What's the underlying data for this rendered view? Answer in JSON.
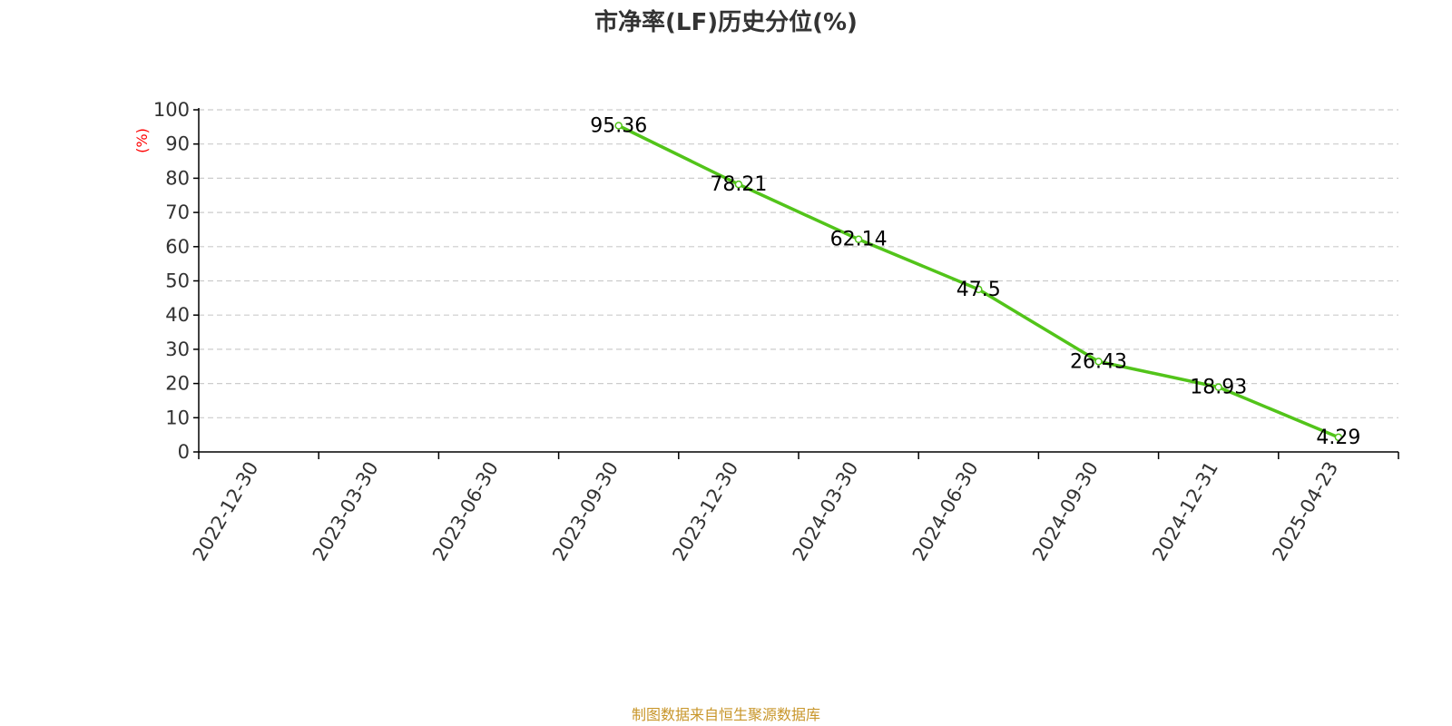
{
  "title": "市净率(LF)历史分位(%)",
  "footer": "制图数据来自恒生聚源数据库",
  "colors": {
    "line": "#52c41a",
    "axis": "#000000",
    "grid": "#cccccc",
    "ylabel": "#ff0000",
    "footer": "#c8962a",
    "title": "#333333"
  },
  "chart_data": {
    "type": "line",
    "title": "市净率(LF)历史分位(%)",
    "xlabel": "",
    "ylabel": "(%)",
    "ylim": [
      0,
      100
    ],
    "yticks": [
      0,
      10,
      20,
      30,
      40,
      50,
      60,
      70,
      80,
      90,
      100
    ],
    "categories": [
      "2022-12-30",
      "2023-03-30",
      "2023-06-30",
      "2023-09-30",
      "2023-12-30",
      "2024-03-30",
      "2024-06-30",
      "2024-09-30",
      "2024-12-31",
      "2025-04-23"
    ],
    "grid": true,
    "legend": "none",
    "series": [
      {
        "values": [
          null,
          null,
          null,
          95.36,
          78.21,
          62.14,
          47.5,
          26.43,
          18.93,
          4.29
        ],
        "labels": [
          "",
          "",
          "",
          "95.36",
          "78.21",
          "62.14",
          "47.5",
          "26.43",
          "18.93",
          "4.29"
        ]
      }
    ]
  }
}
